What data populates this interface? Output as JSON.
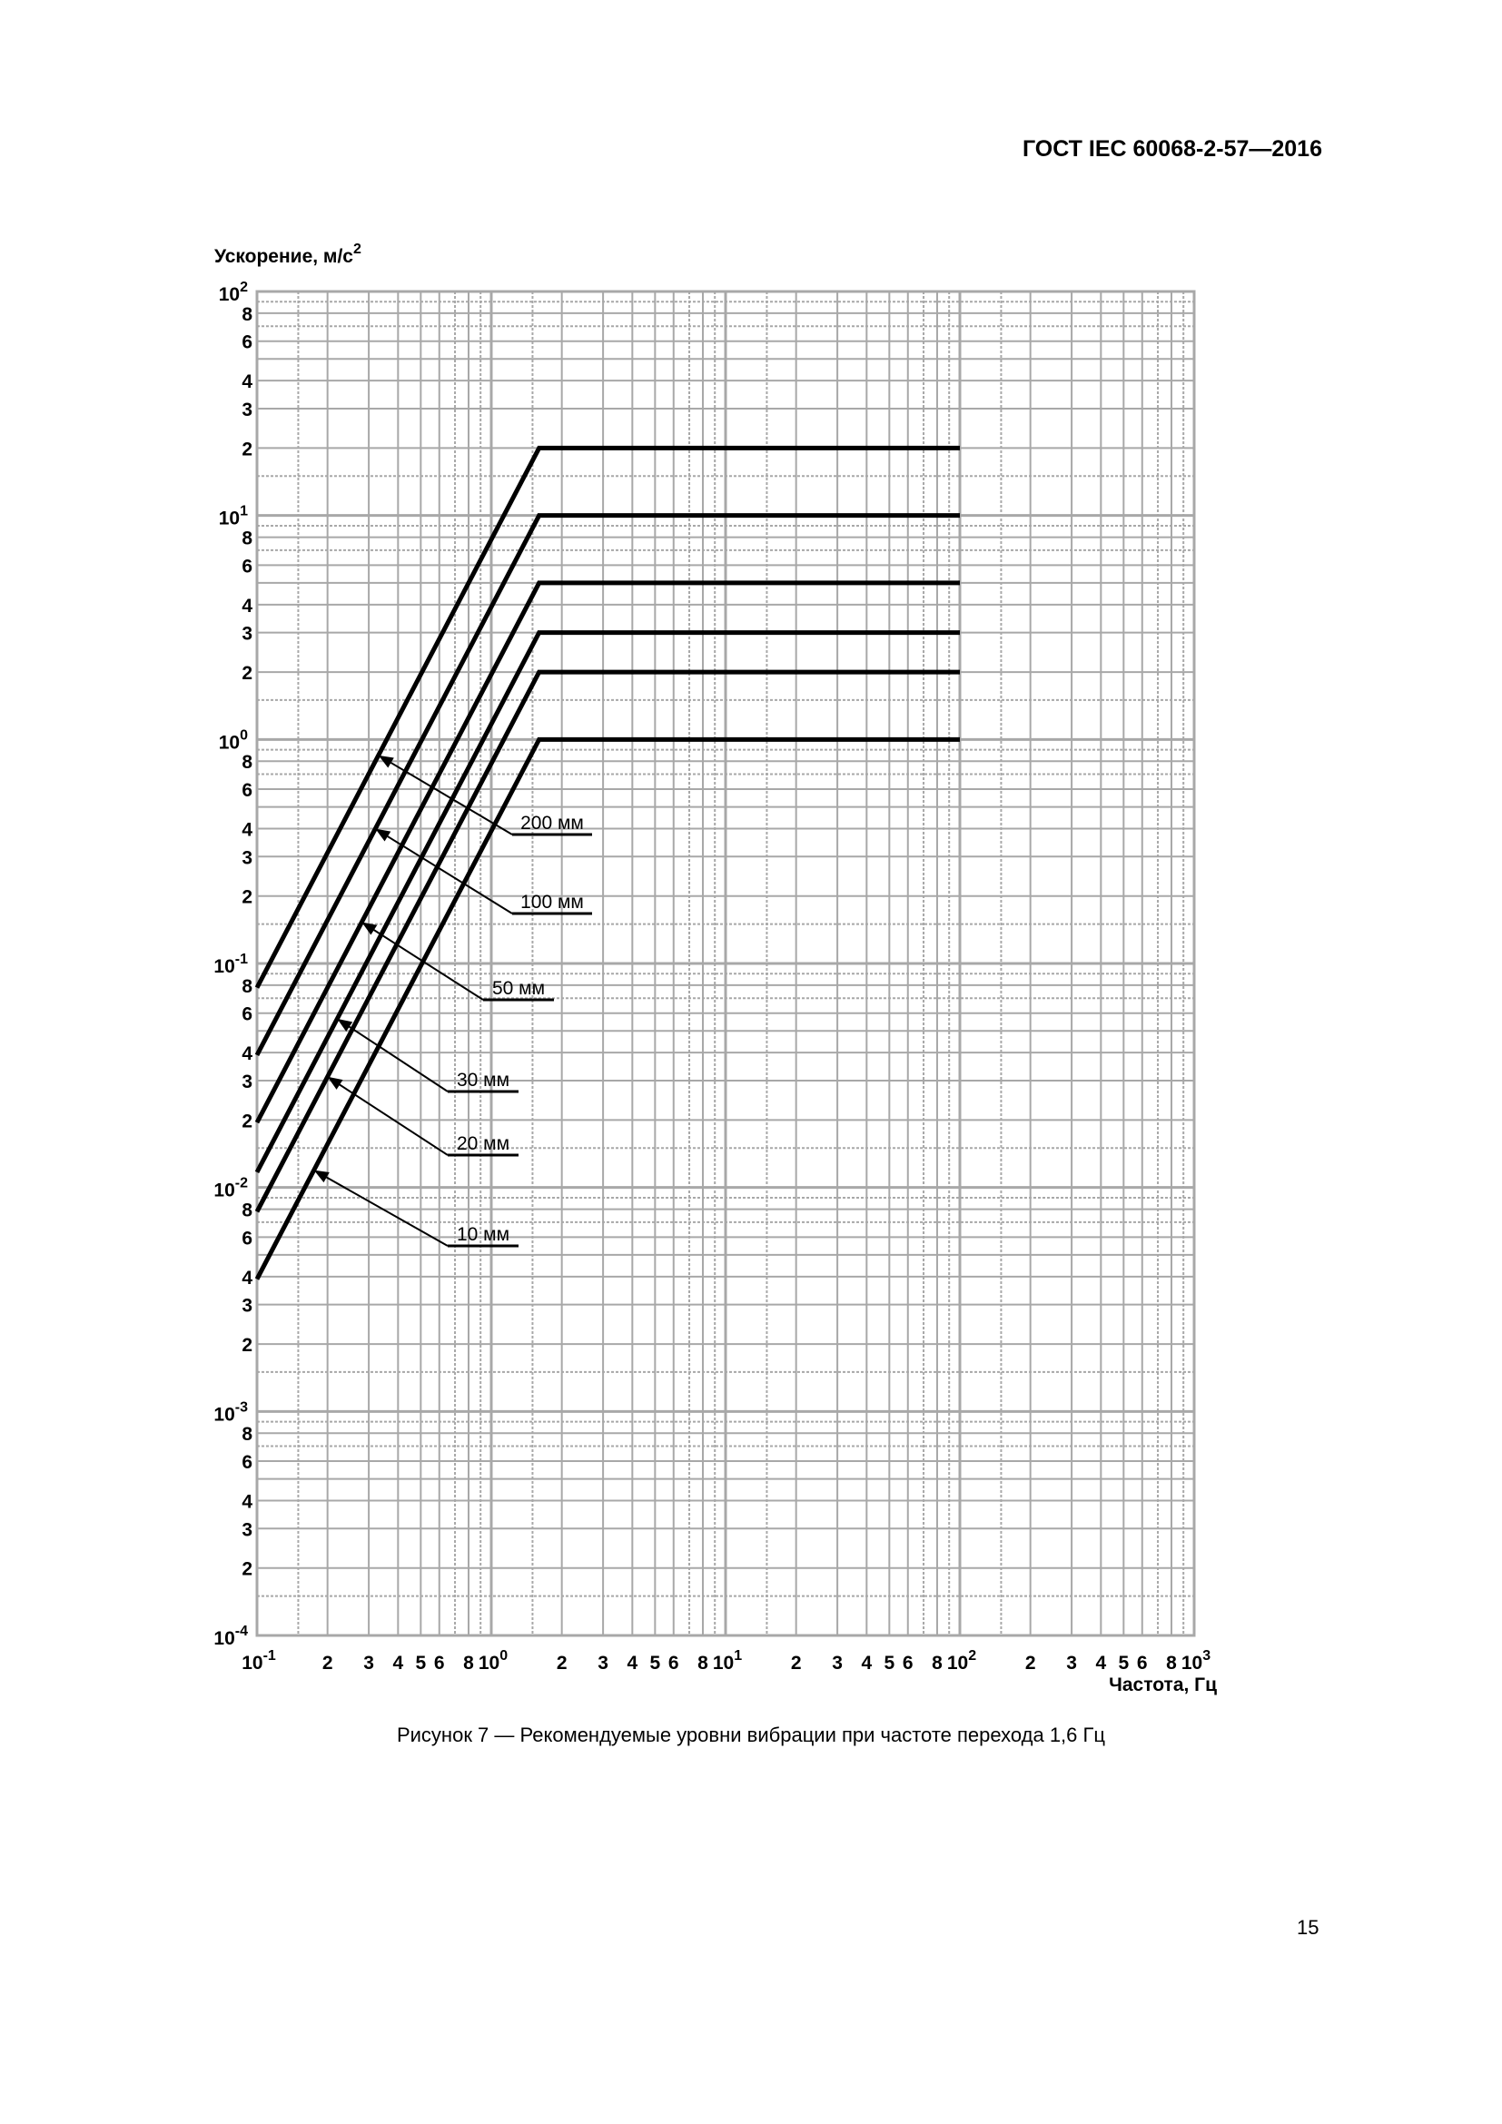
{
  "header": {
    "doc_id": "ГОСТ IEC 60068-2-57—2016"
  },
  "caption": "Рисунок 7 — Рекомендуемые уровни вибрации при частоте перехода 1,6 Гц",
  "page_number": "15",
  "chart_data": {
    "type": "line",
    "xlabel": "Частота, Гц",
    "ylabel": "Ускорение, м/с²",
    "xscale": "log",
    "yscale": "log",
    "xlim": [
      0.1,
      1000
    ],
    "ylim": [
      0.0001,
      100
    ],
    "grid": true,
    "x_decade_labels": [
      "10",
      "-1",
      "10",
      "0",
      "10",
      "1",
      "10",
      "2",
      "10",
      "3"
    ],
    "x_minor_tick_labels": [
      "2",
      "3",
      "4",
      "5",
      "6",
      "8"
    ],
    "y_decade_exponents": [
      "-4",
      "-3",
      "-2",
      "-1",
      "0",
      "1",
      "2"
    ],
    "y_minor_tick_labels": [
      "2",
      "3",
      "4",
      "6",
      "8"
    ],
    "crossover_frequency": 1.6,
    "series": [
      {
        "name": "200 мм",
        "x": [
          0.1,
          1.6,
          100
        ],
        "y": [
          0.078,
          20,
          20
        ],
        "label_at_x": 0.33
      },
      {
        "name": "100 мм",
        "x": [
          0.1,
          1.6,
          100
        ],
        "y": [
          0.039,
          10,
          10
        ],
        "label_at_x": 0.32
      },
      {
        "name": "50 мм",
        "x": [
          0.1,
          1.6,
          100
        ],
        "y": [
          0.0195,
          5,
          5
        ],
        "label_at_x": 0.28
      },
      {
        "name": "30 мм",
        "x": [
          0.1,
          1.6,
          100
        ],
        "y": [
          0.0117,
          3,
          3
        ],
        "label_at_x": 0.22
      },
      {
        "name": "20 мм",
        "x": [
          0.1,
          1.6,
          100
        ],
        "y": [
          0.0078,
          2,
          2
        ],
        "label_at_x": 0.2
      },
      {
        "name": "10 мм",
        "x": [
          0.1,
          1.6,
          100
        ],
        "y": [
          0.0039,
          1,
          1
        ],
        "label_at_x": 0.175
      }
    ],
    "colors": {
      "grid": "#a8a8a8",
      "line": "#000000"
    }
  }
}
